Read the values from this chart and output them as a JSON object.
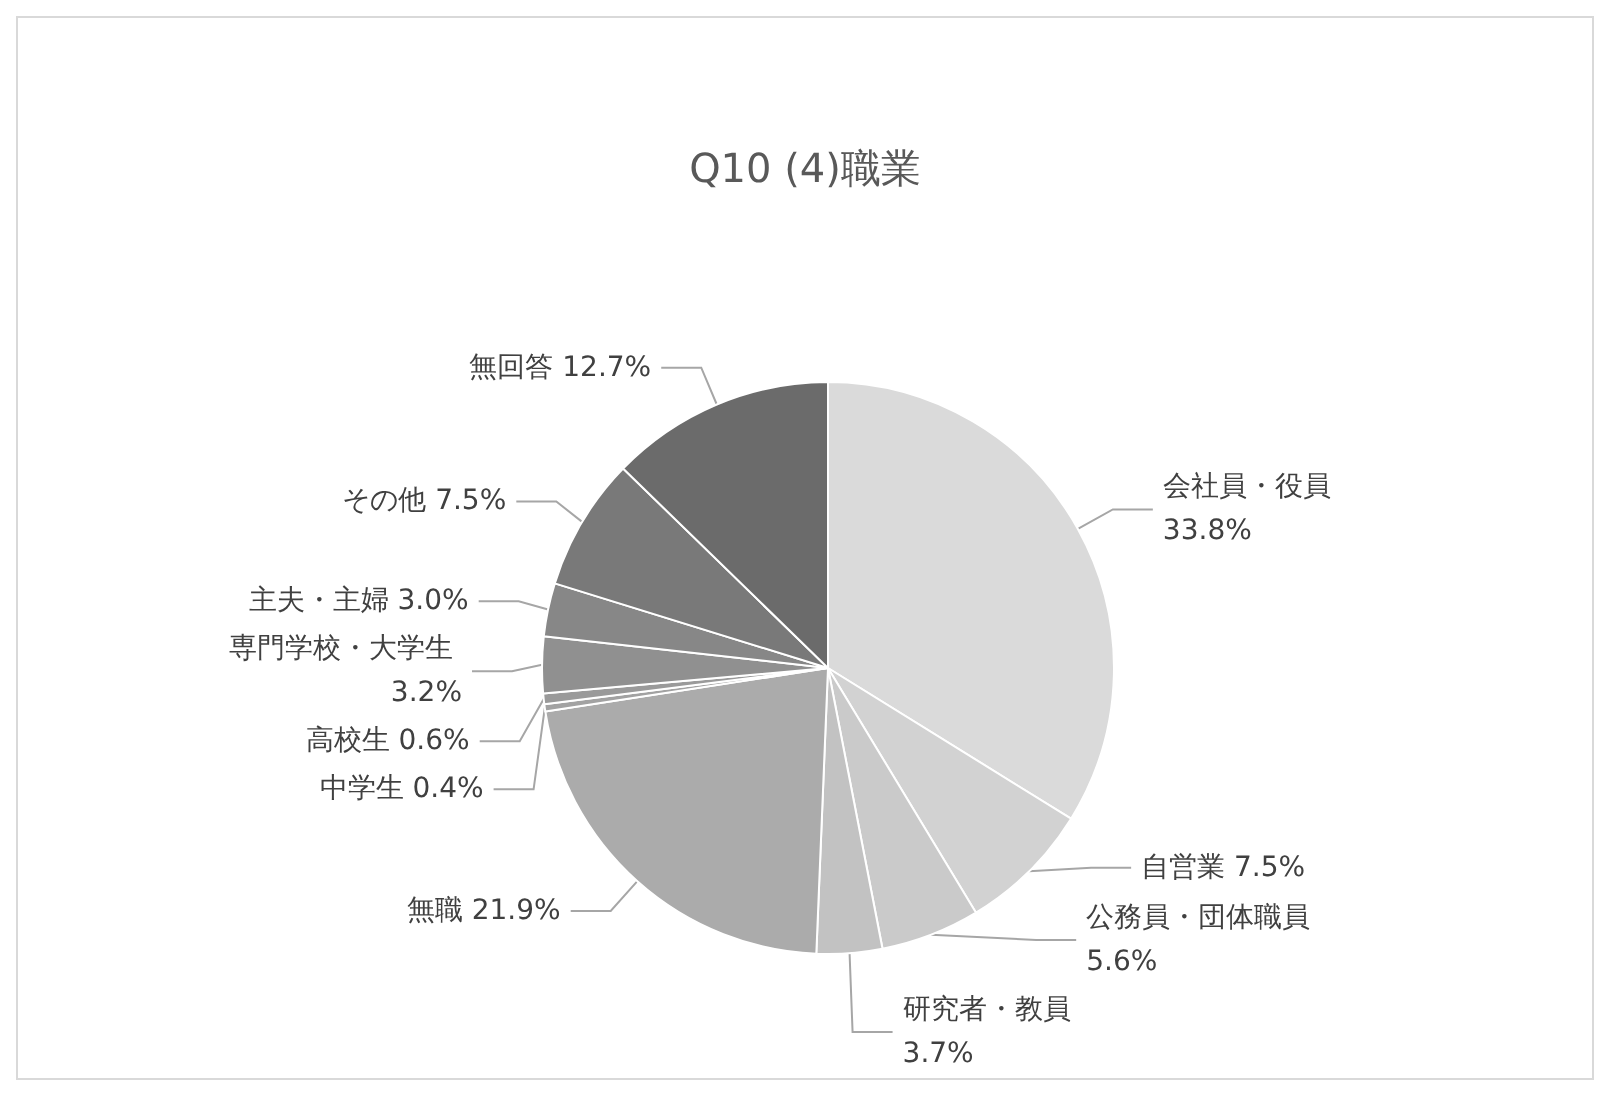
{
  "chart_data": {
    "type": "pie",
    "title": "Q10 (4)職業",
    "categories": [
      "会社員・役員",
      "自営業",
      "公務員・団体職員",
      "研究者・教員",
      "無職",
      "中学生",
      "高校生",
      "専門学校・大学生",
      "主夫・主婦",
      "その他",
      "無回答"
    ],
    "values": [
      33.8,
      7.5,
      5.6,
      3.7,
      21.9,
      0.4,
      0.6,
      3.2,
      3.0,
      7.5,
      12.7
    ],
    "value_labels": [
      "33.8%",
      "7.5%",
      "5.6%",
      "3.7%",
      "21.9%",
      "0.4%",
      "0.6%",
      "3.2%",
      "3.0%",
      "7.5%",
      "12.7%"
    ],
    "colors": [
      "#dadada",
      "#d2d2d2",
      "#cacaca",
      "#c2c2c2",
      "#ababab",
      "#a2a2a2",
      "#9a9a9a",
      "#909090",
      "#878787",
      "#797979",
      "#6b6b6b"
    ],
    "legend": false
  }
}
